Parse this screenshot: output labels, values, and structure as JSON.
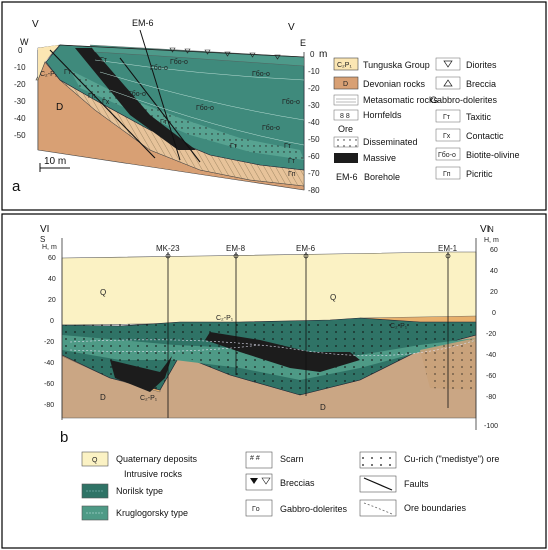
{
  "panel_a": {
    "label": "a",
    "section_left": "V",
    "section_right": "V",
    "compass_left": "W",
    "compass_right": "E",
    "borehole_top": "EM-6",
    "unit_m": "m",
    "left_scale": [
      "0",
      "-10",
      "-20",
      "-30",
      "-40",
      "-50"
    ],
    "right_scale": [
      "0",
      "-10",
      "-20",
      "-30",
      "-40",
      "-50",
      "-60",
      "-70",
      "-80"
    ],
    "scale_bar": "10 m",
    "map_labels": {
      "c2p1": "C₂-P₁",
      "d": "D",
      "gt": "Гт",
      "gbo": "Гбо-о",
      "gp": "Гп",
      "gh": "Гх"
    },
    "legend": {
      "tunguska": "Tunguska Group",
      "tunguska_swatch": "C₂P₁",
      "devonian": "Devonian rocks",
      "devonian_swatch": "D",
      "metasomatic": "Metasomatic rocks",
      "hornfelds": "Hornfelds",
      "ore": "Ore",
      "disseminated": "Disseminated",
      "massive": "Massive",
      "borehole_code": "EM-6",
      "borehole": "Borehole",
      "diorites": "Diorites",
      "breccia": "Breccia",
      "gabbro": "Gabbro-dolerites",
      "taxitic": "Taxitic",
      "taxitic_code": "Гт",
      "contactic": "Contactic",
      "contactic_code": "Гх",
      "biotite": "Biotite-olivine",
      "biotite_code": "Гбо-о",
      "picritic": "Picritic",
      "picritic_code": "Гп"
    }
  },
  "panel_b": {
    "label": "b",
    "section_left": "VI",
    "section_right": "VI",
    "compass_left": "S",
    "compass_right": "N",
    "unit_left": "H, m",
    "unit_right": "H, m",
    "boreholes": [
      "MK-23",
      "EM-8",
      "EM-6",
      "EM-1"
    ],
    "left_scale": [
      "60",
      "40",
      "20",
      "0",
      "-20",
      "-40",
      "-60",
      "-80"
    ],
    "right_scale": [
      "60",
      "40",
      "20",
      "0",
      "-20",
      "-40",
      "-60",
      "-80",
      "-100"
    ],
    "map_labels": {
      "q": "Q",
      "d": "D",
      "c2p1": "C₂-P₁"
    },
    "legend": {
      "q_swatch": "Q",
      "quaternary": "Quaternary deposits",
      "intrusive": "Intrusive rocks",
      "norilsk": "Norilsk type",
      "kruglogorsky": "Kruglogorsky type",
      "scarn": "Scarn",
      "breccias": "Breccias",
      "gabbro_swatch": "Гo",
      "gabbro": "Gabbro-dolerites",
      "cu_rich": "Cu-rich (\"medistye\") ore",
      "faults": "Faults",
      "ore_boundaries": "Ore boundaries"
    }
  }
}
